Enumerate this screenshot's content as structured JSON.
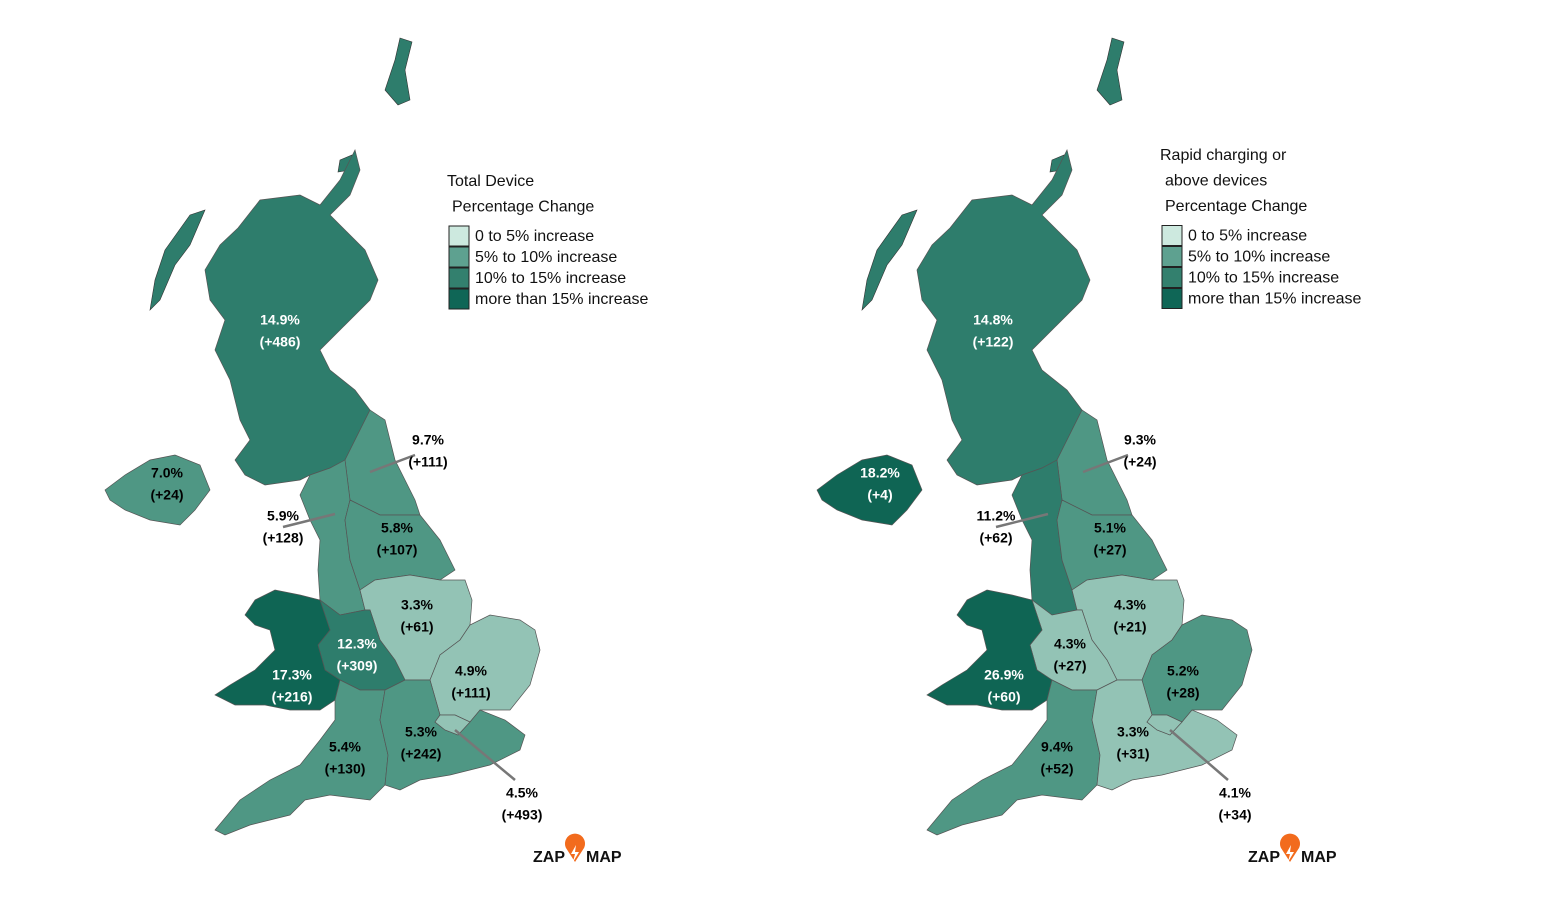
{
  "maps": [
    {
      "legend": {
        "title": [
          "Total Device",
          "Percentage Change"
        ],
        "items": [
          {
            "label": "0 to 5% increase",
            "color": "#cde9df"
          },
          {
            "label": "5% to 10% increase",
            "color": "#5ea190"
          },
          {
            "label": "10% to 15% increase",
            "color": "#33806e"
          },
          {
            "label": "more than 15% increase",
            "color": "#0f6656"
          }
        ]
      },
      "regions": [
        {
          "percent": "14.9%",
          "change": "(+486)",
          "color": "#2e7d6c"
        },
        {
          "percent": "7.0%",
          "change": "(+24)",
          "color": "#4f9784"
        },
        {
          "percent": "9.7%",
          "change": "(+111)",
          "color": "#4f9784"
        },
        {
          "percent": "5.9%",
          "change": "(+128)",
          "color": "#4f9784"
        },
        {
          "percent": "5.8%",
          "change": "(+107)",
          "color": "#4f9784"
        },
        {
          "percent": "3.3%",
          "change": "(+61)",
          "color": "#93c3b5"
        },
        {
          "percent": "12.3%",
          "change": "(+309)",
          "color": "#2e7d6c"
        },
        {
          "percent": "17.3%",
          "change": "(+216)",
          "color": "#0f6554"
        },
        {
          "percent": "4.9%",
          "change": "(+111)",
          "color": "#93c3b5"
        },
        {
          "percent": "5.4%",
          "change": "(+130)",
          "color": "#4f9784"
        },
        {
          "percent": "5.3%",
          "change": "(+242)",
          "color": "#4f9784"
        },
        {
          "percent": "4.5%",
          "change": "(+493)",
          "color": "#93c3b5"
        }
      ],
      "logo": {
        "left": "ZAP",
        "right": "MAP"
      }
    },
    {
      "legend": {
        "title": [
          "Rapid charging or",
          "above devices",
          "Percentage Change"
        ],
        "items": [
          {
            "label": "0 to 5% increase",
            "color": "#cde9df"
          },
          {
            "label": "5% to 10% increase",
            "color": "#5ea190"
          },
          {
            "label": "10% to 15% increase",
            "color": "#33806e"
          },
          {
            "label": "more than 15% increase",
            "color": "#0f6656"
          }
        ]
      },
      "regions": [
        {
          "percent": "14.8%",
          "change": "(+122)",
          "color": "#2e7d6c"
        },
        {
          "percent": "18.2%",
          "change": "(+4)",
          "color": "#0f6554"
        },
        {
          "percent": "9.3%",
          "change": "(+24)",
          "color": "#4f9784"
        },
        {
          "percent": "11.2%",
          "change": "(+62)",
          "color": "#2e7d6c"
        },
        {
          "percent": "5.1%",
          "change": "(+27)",
          "color": "#4f9784"
        },
        {
          "percent": "4.3%",
          "change": "(+21)",
          "color": "#93c3b5"
        },
        {
          "percent": "4.3%",
          "change": "(+27)",
          "color": "#93c3b5"
        },
        {
          "percent": "26.9%",
          "change": "(+60)",
          "color": "#0f6554"
        },
        {
          "percent": "5.2%",
          "change": "(+28)",
          "color": "#4f9784"
        },
        {
          "percent": "9.4%",
          "change": "(+52)",
          "color": "#4f9784"
        },
        {
          "percent": "3.3%",
          "change": "(+31)",
          "color": "#93c3b5"
        },
        {
          "percent": "4.1%",
          "change": "(+34)",
          "color": "#93c3b5"
        }
      ],
      "logo": {
        "left": "ZAP",
        "right": "MAP"
      }
    }
  ]
}
